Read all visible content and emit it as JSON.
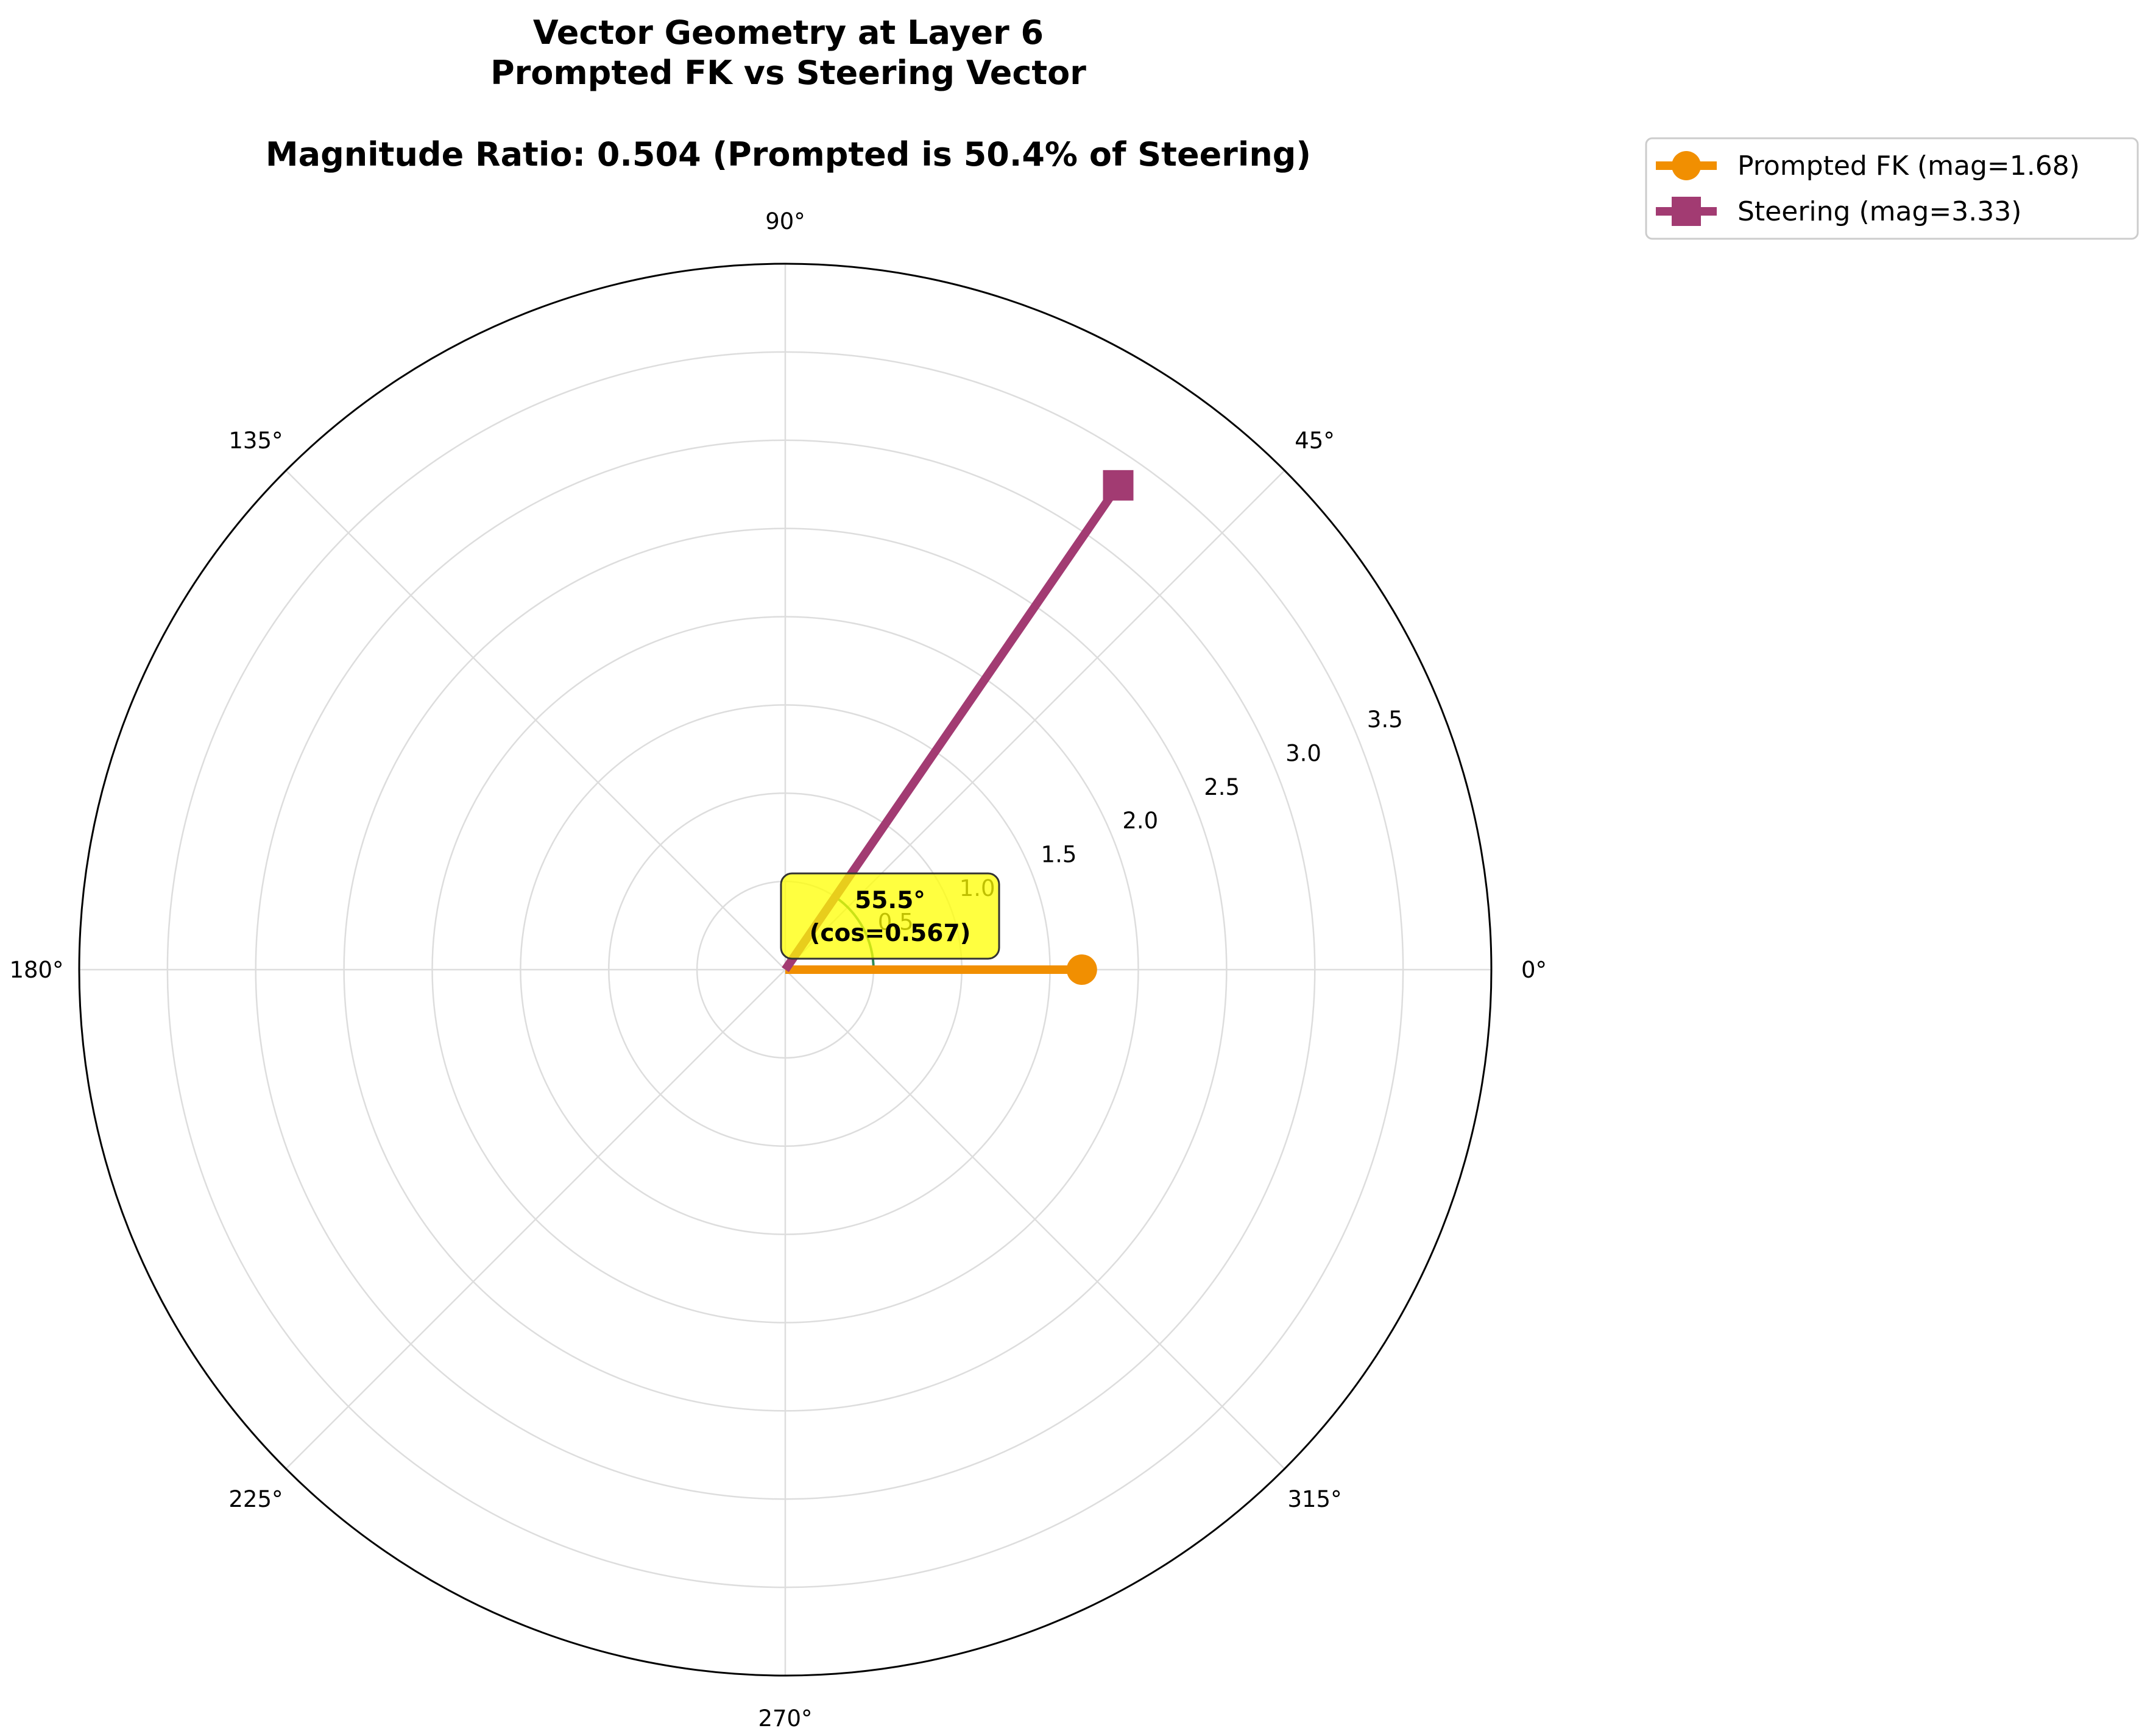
{
  "chart_data": {
    "type": "polar-vector",
    "title_lines": [
      "Vector Geometry at Layer 6",
      "Prompted FK vs Steering Vector",
      "",
      "Magnitude Ratio: 0.504 (Prompted is 50.4% of Steering)"
    ],
    "angular_ticks": [
      "0°",
      "45°",
      "90°",
      "135°",
      "180°",
      "225°",
      "270°",
      "315°"
    ],
    "angular_tick_values_deg": [
      0,
      45,
      90,
      135,
      180,
      225,
      270,
      315
    ],
    "radial_ticks": [
      "0.5",
      "1.0",
      "1.5",
      "2.0",
      "2.5",
      "3.0",
      "3.5"
    ],
    "radial_tick_values": [
      0.5,
      1.0,
      1.5,
      2.0,
      2.5,
      3.0,
      3.5
    ],
    "rlim": [
      0,
      4.0
    ],
    "grid": true,
    "legend_position": "outside top-right",
    "series": [
      {
        "name": "Prompted FK (mag=1.68)",
        "angle_deg": 0,
        "magnitude": 1.68,
        "marker": "circle",
        "color": "#F18F01"
      },
      {
        "name": "Steering (mag=3.33)",
        "angle_deg": 55.5,
        "magnitude": 3.33,
        "marker": "square",
        "color": "#A23B72"
      }
    ],
    "angle_arc": {
      "from_deg": 0,
      "to_deg": 55.5,
      "radius": 0.5,
      "color": "#2E8B57"
    },
    "annotation": {
      "line1": "55.5°",
      "line2": "(cos=0.567)",
      "box_color": "#FFFF00"
    }
  }
}
